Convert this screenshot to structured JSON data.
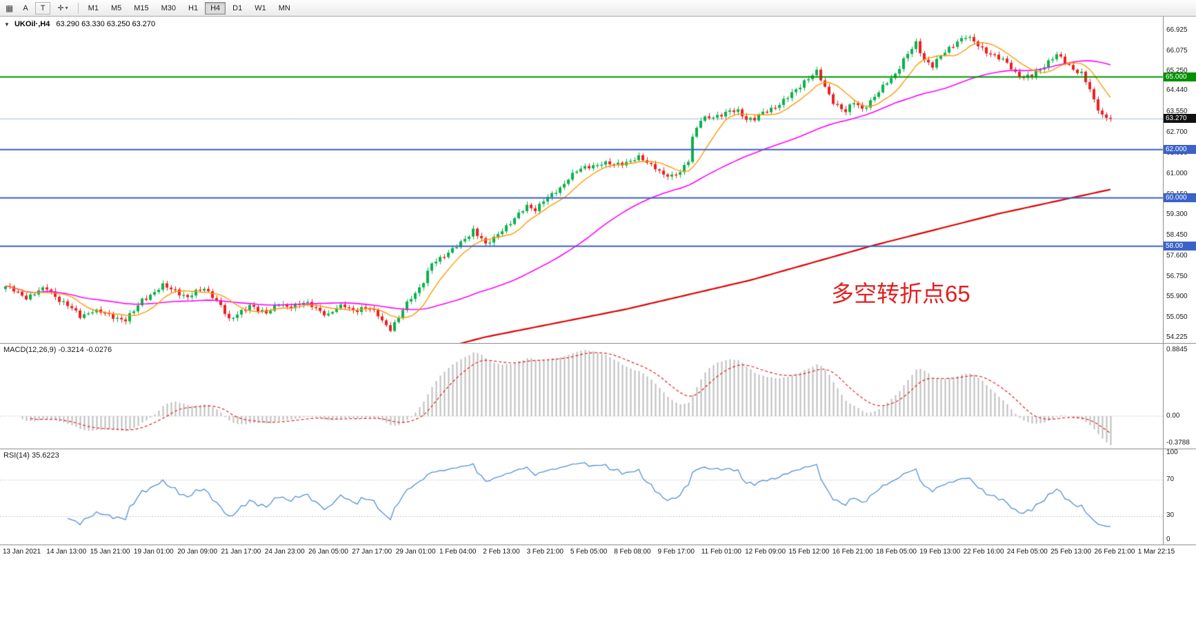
{
  "toolbar": {
    "icons": {
      "grid": "▦",
      "text_a": "A",
      "text_t": "T",
      "cursor": "✛",
      "caret": "▾"
    },
    "timeframes": [
      "M1",
      "M5",
      "M15",
      "M30",
      "H1",
      "H4",
      "D1",
      "W1",
      "MN"
    ],
    "active_timeframe": "H4"
  },
  "chart": {
    "expander": "▼",
    "title": "UKOil·,H4",
    "ohlc": "63.290 63.330 63.250 63.270",
    "annotation": "多空转折点65",
    "current_price_label": "63.270",
    "price_labels": [
      "66.925",
      "66.075",
      "65.250",
      "64.440",
      "63.550",
      "62.700",
      "61.850",
      "61.000",
      "60.150",
      "59.300",
      "58.450",
      "57.600",
      "56.750",
      "55.900",
      "55.050",
      "54.225"
    ],
    "hlines": [
      {
        "price": 65.0,
        "label": "65.000",
        "color": "#009000"
      },
      {
        "price": 62.0,
        "label": "62.000",
        "color": "#3a62c8"
      },
      {
        "price": 60.0,
        "label": "60.000",
        "color": "#3a62c8"
      },
      {
        "price": 58.0,
        "label": "58.00",
        "color": "#3a62c8"
      }
    ]
  },
  "macd": {
    "label": "MACD(12,26,9) -0.3214 -0.0276",
    "scale_labels": [
      "0.8845",
      "0.00",
      "-0.3788"
    ]
  },
  "rsi": {
    "label": "RSI(14) 35.6223",
    "scale_labels": [
      "100",
      "70",
      "30",
      "0"
    ]
  },
  "time_axis": [
    "13 Jan 2021",
    "14 Jan 13:00",
    "15 Jan 21:00",
    "19 Jan 01:00",
    "20 Jan 09:00",
    "21 Jan 17:00",
    "24 Jan 23:00",
    "26 Jan 05:00",
    "27 Jan 17:00",
    "29 Jan 01:00",
    "1 Feb 04:00",
    "2 Feb 13:00",
    "3 Feb 21:00",
    "5 Feb 05:00",
    "8 Feb 08:00",
    "9 Feb 17:00",
    "11 Feb 01:00",
    "12 Feb 09:00",
    "15 Feb 12:00",
    "16 Feb 21:00",
    "18 Feb 05:00",
    "19 Feb 13:00",
    "22 Feb 16:00",
    "24 Feb 05:00",
    "25 Feb 13:00",
    "26 Feb 21:00",
    "1 Mar 22:15"
  ],
  "colors": {
    "up": "#0bb24a",
    "down": "#ee1f1f",
    "ma_fast": "#ff9800",
    "ma_mid": "#ff00ff",
    "ma_slow": "#dd0000",
    "macd_hist": "#bdbdbd",
    "macd_signal": "#e02020",
    "rsi_line": "#4f8fd4",
    "annotation": "#e02121",
    "current_line": "#9db8d8",
    "current_tag_bg": "#111111",
    "grid_dotted": "#c8c8c8"
  },
  "chart_data": {
    "type": "candlestick",
    "symbol": "UKOil",
    "timeframe": "H4",
    "bars": 268,
    "last_close": 63.27,
    "current_price": 63.27,
    "price_axis": {
      "min": 54.0,
      "max": 67.5
    },
    "close_waypoints": [
      [
        0,
        56.35
      ],
      [
        3,
        56.05
      ],
      [
        5,
        55.9
      ],
      [
        8,
        56.15
      ],
      [
        10,
        56.25
      ],
      [
        13,
        55.8
      ],
      [
        15,
        55.55
      ],
      [
        18,
        55.1
      ],
      [
        21,
        55.35
      ],
      [
        25,
        55.15
      ],
      [
        29,
        54.95
      ],
      [
        31,
        55.3
      ],
      [
        33,
        55.8
      ],
      [
        36,
        56.1
      ],
      [
        38,
        56.35
      ],
      [
        41,
        56.2
      ],
      [
        44,
        55.85
      ],
      [
        46,
        56.1
      ],
      [
        48,
        56.3
      ],
      [
        50,
        55.95
      ],
      [
        52,
        55.5
      ],
      [
        54,
        54.95
      ],
      [
        56,
        55.25
      ],
      [
        59,
        55.5
      ],
      [
        61,
        55.35
      ],
      [
        63,
        55.3
      ],
      [
        66,
        55.6
      ],
      [
        68,
        55.45
      ],
      [
        70,
        55.6
      ],
      [
        72,
        55.7
      ],
      [
        74,
        55.5
      ],
      [
        76,
        55.3
      ],
      [
        78,
        55.2
      ],
      [
        80,
        55.45
      ],
      [
        82,
        55.5
      ],
      [
        84,
        55.35
      ],
      [
        86,
        55.45
      ],
      [
        88,
        55.4
      ],
      [
        90,
        55.15
      ],
      [
        92,
        54.75
      ],
      [
        93,
        54.6
      ],
      [
        95,
        55.0
      ],
      [
        96,
        55.35
      ],
      [
        98,
        55.9
      ],
      [
        100,
        56.3
      ],
      [
        101,
        56.55
      ],
      [
        103,
        57.25
      ],
      [
        105,
        57.5
      ],
      [
        106,
        57.65
      ],
      [
        108,
        57.9
      ],
      [
        110,
        58.1
      ],
      [
        112,
        58.45
      ],
      [
        113,
        58.7
      ],
      [
        115,
        58.35
      ],
      [
        116,
        58.05
      ],
      [
        118,
        58.3
      ],
      [
        120,
        58.7
      ],
      [
        122,
        59.0
      ],
      [
        124,
        59.3
      ],
      [
        126,
        59.65
      ],
      [
        128,
        59.55
      ],
      [
        130,
        59.9
      ],
      [
        132,
        60.1
      ],
      [
        134,
        60.4
      ],
      [
        136,
        60.85
      ],
      [
        138,
        61.1
      ],
      [
        141,
        61.3
      ],
      [
        144,
        61.45
      ],
      [
        147,
        61.35
      ],
      [
        150,
        61.5
      ],
      [
        153,
        61.65
      ],
      [
        155,
        61.45
      ],
      [
        157,
        61.3
      ],
      [
        159,
        60.95
      ],
      [
        161,
        60.85
      ],
      [
        163,
        61.1
      ],
      [
        165,
        61.6
      ],
      [
        166,
        62.5
      ],
      [
        168,
        63.2
      ],
      [
        170,
        63.35
      ],
      [
        173,
        63.45
      ],
      [
        175,
        63.55
      ],
      [
        177,
        63.6
      ],
      [
        179,
        63.3
      ],
      [
        181,
        63.25
      ],
      [
        183,
        63.5
      ],
      [
        185,
        63.7
      ],
      [
        187,
        63.9
      ],
      [
        189,
        64.15
      ],
      [
        191,
        64.45
      ],
      [
        193,
        64.85
      ],
      [
        195,
        65.1
      ],
      [
        196,
        65.2
      ],
      [
        198,
        64.55
      ],
      [
        200,
        64.0
      ],
      [
        202,
        63.7
      ],
      [
        203,
        63.55
      ],
      [
        205,
        63.95
      ],
      [
        207,
        63.7
      ],
      [
        209,
        64.0
      ],
      [
        211,
        64.35
      ],
      [
        213,
        64.8
      ],
      [
        215,
        65.15
      ],
      [
        217,
        65.7
      ],
      [
        219,
        66.15
      ],
      [
        220,
        66.4
      ],
      [
        222,
        65.75
      ],
      [
        224,
        65.45
      ],
      [
        226,
        65.85
      ],
      [
        228,
        66.2
      ],
      [
        230,
        66.5
      ],
      [
        232,
        66.65
      ],
      [
        234,
        66.45
      ],
      [
        236,
        66.2
      ],
      [
        238,
        65.95
      ],
      [
        240,
        65.75
      ],
      [
        242,
        65.6
      ],
      [
        244,
        65.2
      ],
      [
        246,
        64.95
      ],
      [
        248,
        65.05
      ],
      [
        250,
        65.35
      ],
      [
        252,
        65.65
      ],
      [
        254,
        65.9
      ],
      [
        256,
        65.6
      ],
      [
        258,
        65.35
      ],
      [
        260,
        65.15
      ],
      [
        262,
        64.45
      ],
      [
        263,
        64.0
      ],
      [
        264,
        63.7
      ],
      [
        265,
        63.45
      ],
      [
        266,
        63.35
      ],
      [
        267,
        63.27
      ]
    ],
    "noise": [
      0.07,
      2.35,
      0.05,
      0.87
    ],
    "wick": [
      0.04,
      0.1
    ],
    "ma_fast_period": 9,
    "ma_mid_period": 50,
    "red_ma_waypoints": [
      [
        0,
        49.1
      ],
      [
        116,
        54.25
      ],
      [
        150,
        55.4
      ],
      [
        180,
        56.6
      ],
      [
        210,
        58.05
      ],
      [
        240,
        59.35
      ],
      [
        267,
        60.35
      ]
    ],
    "macd": {
      "fast": 12,
      "slow": 26,
      "signal": 9,
      "axis_max": 0.8845,
      "axis_min": -0.3788,
      "last_values": [
        -0.3214,
        -0.0276
      ]
    },
    "rsi": {
      "period": 14,
      "last_value": 35.6223,
      "levels": [
        70,
        30
      ],
      "range": [
        0,
        100
      ]
    }
  }
}
